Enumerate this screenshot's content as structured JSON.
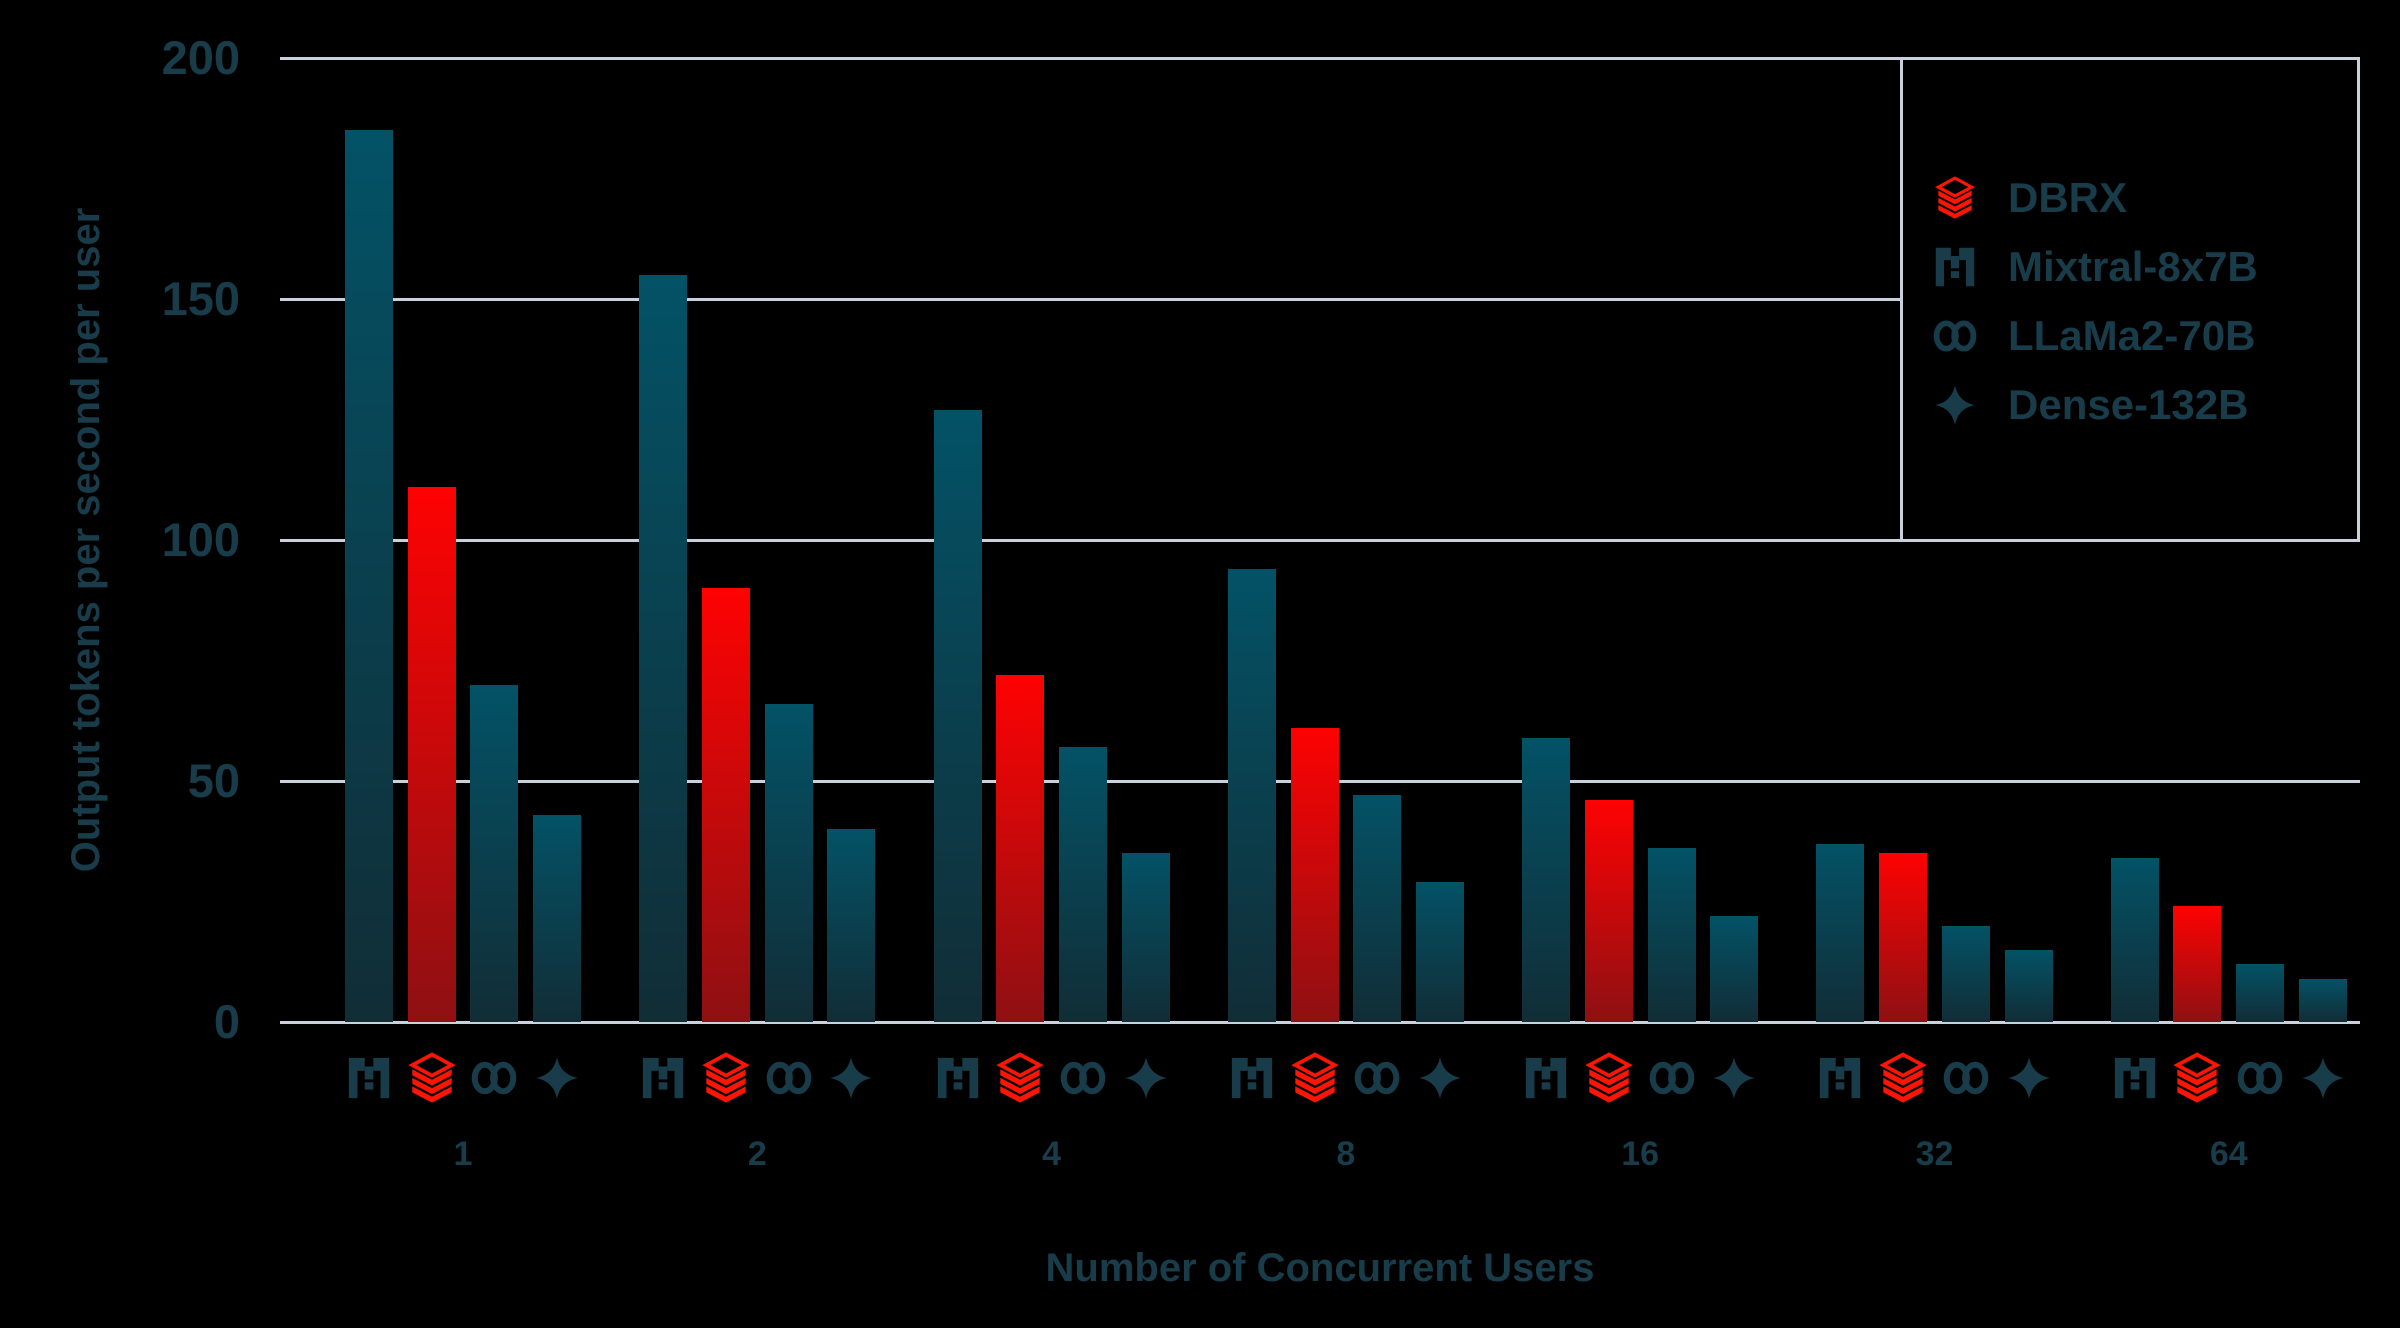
{
  "colors": {
    "background": "#000000",
    "grid": "#c9d2dc",
    "text": "#183c4a",
    "teal_bar_top": "#035266",
    "teal_bar_bottom": "#112d36",
    "red_bar_top": "#fe0202",
    "red_bar_bottom": "#8e1013",
    "brand_red": "#fa1505"
  },
  "chart_data": {
    "type": "bar",
    "title": "",
    "xlabel": "Number of Concurrent Users",
    "ylabel": "Output tokens per second per user",
    "categories": [
      "1",
      "2",
      "4",
      "8",
      "16",
      "32",
      "64"
    ],
    "ylim": [
      0,
      200
    ],
    "yticks": [
      "0",
      "50",
      "100",
      "150",
      "200"
    ],
    "grid": true,
    "legend": {
      "position": "top-right",
      "boxed": true
    },
    "bar_order": [
      "Mixtral-8x7B",
      "DBRX",
      "LLaMa2-70B",
      "Dense-132B"
    ],
    "series": [
      {
        "name": "DBRX",
        "icon": "databricks-logo",
        "palette": "red",
        "values": [
          111,
          90,
          72,
          61,
          46,
          35,
          24
        ]
      },
      {
        "name": "Mixtral-8x7B",
        "icon": "mistral-logo",
        "palette": "teal",
        "values": [
          185,
          155,
          127,
          94,
          59,
          37,
          34
        ]
      },
      {
        "name": "LLaMa2-70B",
        "icon": "meta-logo",
        "palette": "teal",
        "values": [
          70,
          66,
          57,
          47,
          36,
          20,
          12
        ]
      },
      {
        "name": "Dense-132B",
        "icon": "sparkle-icon",
        "palette": "teal",
        "values": [
          43,
          40,
          35,
          29,
          22,
          15,
          9
        ]
      }
    ]
  }
}
